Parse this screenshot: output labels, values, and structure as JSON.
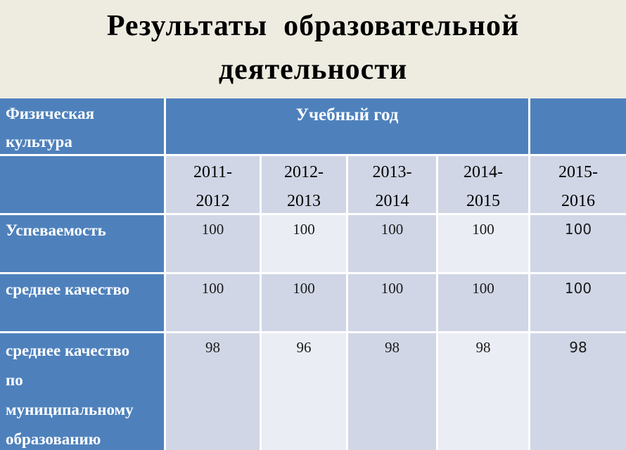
{
  "title": {
    "line1": "Результаты  образовательной",
    "line2": "деятельности"
  },
  "table": {
    "subject_header": "Физическая\nкультура",
    "year_group_header": "Учебный год",
    "years": [
      "2011-\n2012",
      "2012-\n2013",
      "2013-\n2014",
      "2014-\n2015",
      "2015-\n2016"
    ],
    "rows": [
      {
        "label": "Успеваемость",
        "values": [
          "100",
          "100",
          "100",
          "100",
          "100"
        ]
      },
      {
        "label": "среднее качество",
        "values": [
          "100",
          "100",
          "100",
          "100",
          "100"
        ]
      },
      {
        "label": "среднее качество\nпо\nмуниципальному\nобразованию",
        "values": [
          "98",
          "96",
          "98",
          "98",
          "98"
        ]
      }
    ]
  },
  "colors": {
    "header_blue": "#4E81BC",
    "band_dark": "#D0D6E5",
    "band_light": "#EAEDF4",
    "grid_line": "#FFFFFF",
    "slide_background": "#EEECE1",
    "title_text": "#000000"
  }
}
